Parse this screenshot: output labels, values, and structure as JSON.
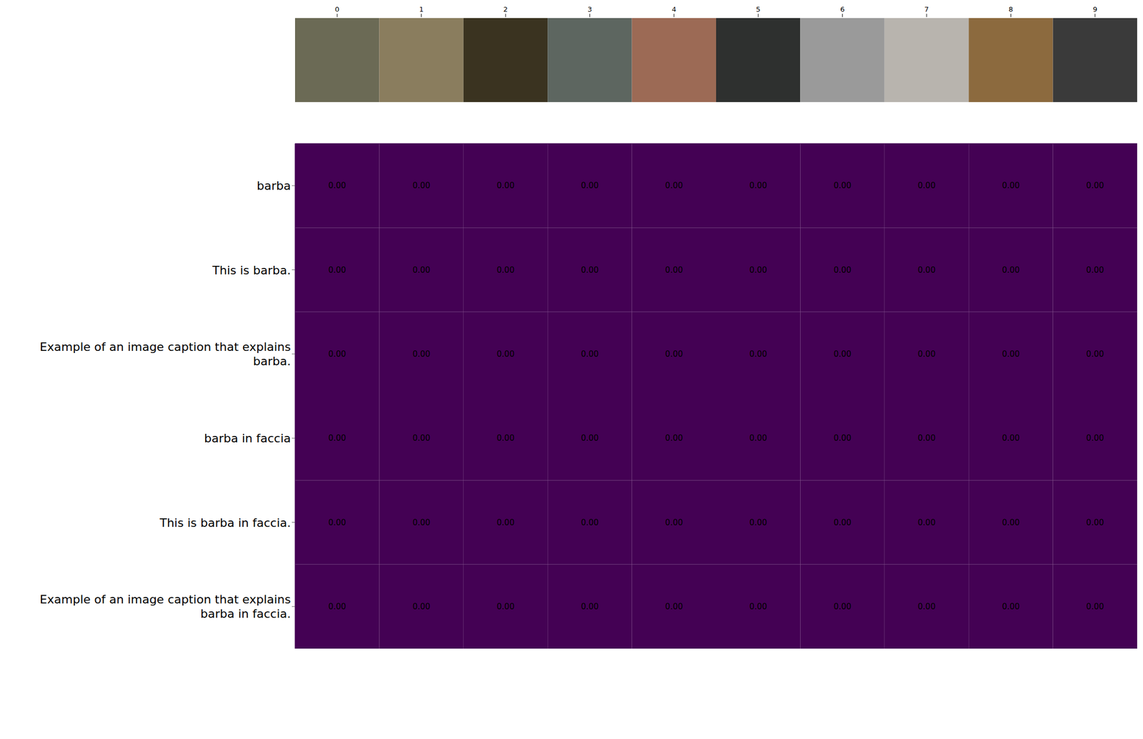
{
  "chart_data": {
    "type": "heatmap",
    "categories": [
      0,
      1,
      2,
      3,
      4,
      5,
      6,
      7,
      8,
      9
    ],
    "rows": [
      "barba",
      "This is barba.",
      "Example of an image caption that explains barba.",
      "barba in faccia",
      "This is barba in faccia.",
      "Example of an image caption that explains barba in faccia."
    ],
    "cells": [
      [
        0,
        0,
        0,
        0,
        0,
        0,
        0,
        0,
        0,
        0
      ],
      [
        0,
        0,
        0,
        0,
        0,
        0,
        0,
        0,
        0,
        0
      ],
      [
        0,
        0,
        0,
        0,
        0,
        0,
        0,
        0,
        0,
        0
      ],
      [
        0,
        0,
        0,
        0,
        0,
        0,
        0,
        0,
        0,
        0
      ],
      [
        0,
        0,
        0,
        0,
        0,
        0,
        0,
        0,
        0,
        0
      ],
      [
        0,
        0,
        0,
        0,
        0,
        0,
        0,
        0,
        0,
        0
      ]
    ],
    "value_labels": [
      [
        "0.00",
        "0.00",
        "0.00",
        "0.00",
        "0.00",
        "0.00",
        "0.00",
        "0.00",
        "0.00",
        "0.00"
      ],
      [
        "0.00",
        "0.00",
        "0.00",
        "0.00",
        "0.00",
        "0.00",
        "0.00",
        "0.00",
        "0.00",
        "0.00"
      ],
      [
        "0.00",
        "0.00",
        "0.00",
        "0.00",
        "0.00",
        "0.00",
        "0.00",
        "0.00",
        "0.00",
        "0.00"
      ],
      [
        "0.00",
        "0.00",
        "0.00",
        "0.00",
        "0.00",
        "0.00",
        "0.00",
        "0.00",
        "0.00",
        "0.00"
      ],
      [
        "0.00",
        "0.00",
        "0.00",
        "0.00",
        "0.00",
        "0.00",
        "0.00",
        "0.00",
        "0.00",
        "0.00"
      ],
      [
        "0.00",
        "0.00",
        "0.00",
        "0.00",
        "0.00",
        "0.00",
        "0.00",
        "0.00",
        "0.00",
        "0.00"
      ]
    ],
    "color": "#440154",
    "data_labels": true
  }
}
